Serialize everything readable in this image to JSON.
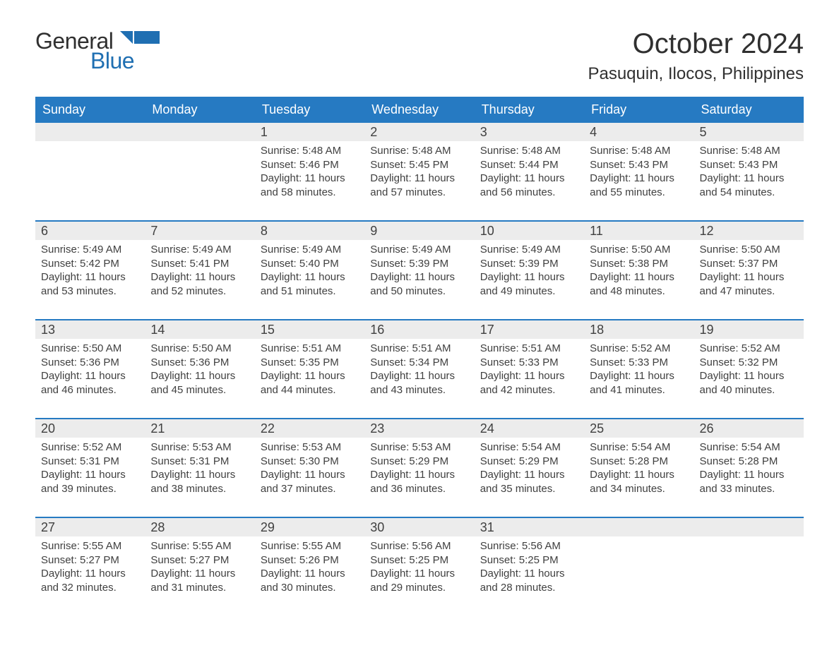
{
  "logo": {
    "word1": "General",
    "word2": "Blue",
    "accent_color": "#1f6fb2"
  },
  "title": "October 2024",
  "location": "Pasuquin, Ilocos, Philippines",
  "colors": {
    "header_bg": "#267ac2",
    "header_text": "#ffffff",
    "daynum_bg": "#ececec",
    "week_border": "#267ac2",
    "body_text": "#404040",
    "page_bg": "#ffffff"
  },
  "typography": {
    "title_fontsize": 40,
    "location_fontsize": 24,
    "header_fontsize": 18,
    "daynum_fontsize": 18,
    "info_fontsize": 15
  },
  "day_headers": [
    "Sunday",
    "Monday",
    "Tuesday",
    "Wednesday",
    "Thursday",
    "Friday",
    "Saturday"
  ],
  "leading_blanks": 2,
  "labels": {
    "sunrise": "Sunrise:",
    "sunset": "Sunset:",
    "daylight": "Daylight:"
  },
  "days": [
    {
      "n": 1,
      "sunrise": "5:48 AM",
      "sunset": "5:46 PM",
      "daylight": "11 hours and 58 minutes."
    },
    {
      "n": 2,
      "sunrise": "5:48 AM",
      "sunset": "5:45 PM",
      "daylight": "11 hours and 57 minutes."
    },
    {
      "n": 3,
      "sunrise": "5:48 AM",
      "sunset": "5:44 PM",
      "daylight": "11 hours and 56 minutes."
    },
    {
      "n": 4,
      "sunrise": "5:48 AM",
      "sunset": "5:43 PM",
      "daylight": "11 hours and 55 minutes."
    },
    {
      "n": 5,
      "sunrise": "5:48 AM",
      "sunset": "5:43 PM",
      "daylight": "11 hours and 54 minutes."
    },
    {
      "n": 6,
      "sunrise": "5:49 AM",
      "sunset": "5:42 PM",
      "daylight": "11 hours and 53 minutes."
    },
    {
      "n": 7,
      "sunrise": "5:49 AM",
      "sunset": "5:41 PM",
      "daylight": "11 hours and 52 minutes."
    },
    {
      "n": 8,
      "sunrise": "5:49 AM",
      "sunset": "5:40 PM",
      "daylight": "11 hours and 51 minutes."
    },
    {
      "n": 9,
      "sunrise": "5:49 AM",
      "sunset": "5:39 PM",
      "daylight": "11 hours and 50 minutes."
    },
    {
      "n": 10,
      "sunrise": "5:49 AM",
      "sunset": "5:39 PM",
      "daylight": "11 hours and 49 minutes."
    },
    {
      "n": 11,
      "sunrise": "5:50 AM",
      "sunset": "5:38 PM",
      "daylight": "11 hours and 48 minutes."
    },
    {
      "n": 12,
      "sunrise": "5:50 AM",
      "sunset": "5:37 PM",
      "daylight": "11 hours and 47 minutes."
    },
    {
      "n": 13,
      "sunrise": "5:50 AM",
      "sunset": "5:36 PM",
      "daylight": "11 hours and 46 minutes."
    },
    {
      "n": 14,
      "sunrise": "5:50 AM",
      "sunset": "5:36 PM",
      "daylight": "11 hours and 45 minutes."
    },
    {
      "n": 15,
      "sunrise": "5:51 AM",
      "sunset": "5:35 PM",
      "daylight": "11 hours and 44 minutes."
    },
    {
      "n": 16,
      "sunrise": "5:51 AM",
      "sunset": "5:34 PM",
      "daylight": "11 hours and 43 minutes."
    },
    {
      "n": 17,
      "sunrise": "5:51 AM",
      "sunset": "5:33 PM",
      "daylight": "11 hours and 42 minutes."
    },
    {
      "n": 18,
      "sunrise": "5:52 AM",
      "sunset": "5:33 PM",
      "daylight": "11 hours and 41 minutes."
    },
    {
      "n": 19,
      "sunrise": "5:52 AM",
      "sunset": "5:32 PM",
      "daylight": "11 hours and 40 minutes."
    },
    {
      "n": 20,
      "sunrise": "5:52 AM",
      "sunset": "5:31 PM",
      "daylight": "11 hours and 39 minutes."
    },
    {
      "n": 21,
      "sunrise": "5:53 AM",
      "sunset": "5:31 PM",
      "daylight": "11 hours and 38 minutes."
    },
    {
      "n": 22,
      "sunrise": "5:53 AM",
      "sunset": "5:30 PM",
      "daylight": "11 hours and 37 minutes."
    },
    {
      "n": 23,
      "sunrise": "5:53 AM",
      "sunset": "5:29 PM",
      "daylight": "11 hours and 36 minutes."
    },
    {
      "n": 24,
      "sunrise": "5:54 AM",
      "sunset": "5:29 PM",
      "daylight": "11 hours and 35 minutes."
    },
    {
      "n": 25,
      "sunrise": "5:54 AM",
      "sunset": "5:28 PM",
      "daylight": "11 hours and 34 minutes."
    },
    {
      "n": 26,
      "sunrise": "5:54 AM",
      "sunset": "5:28 PM",
      "daylight": "11 hours and 33 minutes."
    },
    {
      "n": 27,
      "sunrise": "5:55 AM",
      "sunset": "5:27 PM",
      "daylight": "11 hours and 32 minutes."
    },
    {
      "n": 28,
      "sunrise": "5:55 AM",
      "sunset": "5:27 PM",
      "daylight": "11 hours and 31 minutes."
    },
    {
      "n": 29,
      "sunrise": "5:55 AM",
      "sunset": "5:26 PM",
      "daylight": "11 hours and 30 minutes."
    },
    {
      "n": 30,
      "sunrise": "5:56 AM",
      "sunset": "5:25 PM",
      "daylight": "11 hours and 29 minutes."
    },
    {
      "n": 31,
      "sunrise": "5:56 AM",
      "sunset": "5:25 PM",
      "daylight": "11 hours and 28 minutes."
    }
  ]
}
